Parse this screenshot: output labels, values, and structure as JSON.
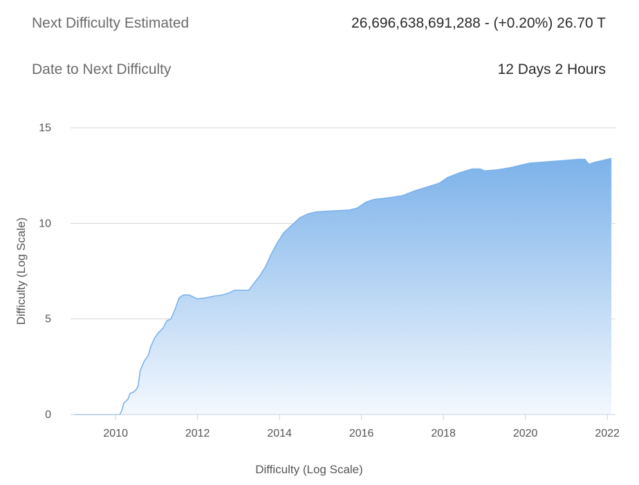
{
  "stats": {
    "next_difficulty_label": "Next Difficulty Estimated",
    "next_difficulty_value": "26,696,638,691,288 - (+0.20%) 26.70 T",
    "date_to_next_label": "Date to Next Difficulty",
    "date_to_next_value": "12 Days 2 Hours"
  },
  "colors": {
    "area_top": "#7cb2ea",
    "area_bottom": "#f3f8fe",
    "line": "#7cb2ea",
    "grid": "#d5d5d5",
    "axis": "#c6d3e6"
  },
  "chart_data": {
    "type": "area",
    "xlabel": "Difficulty (Log Scale)",
    "ylabel": "Difficulty (Log Scale)",
    "xlim": [
      2008.9,
      2022.2
    ],
    "ylim": [
      0,
      15
    ],
    "x_ticks": [
      2010,
      2012,
      2014,
      2016,
      2018,
      2020,
      2022
    ],
    "y_ticks": [
      0,
      5,
      10,
      15
    ],
    "grid": true,
    "series": [
      {
        "points": [
          [
            2009.0,
            0.0
          ],
          [
            2010.1,
            0.0
          ],
          [
            2010.15,
            0.2
          ],
          [
            2010.2,
            0.6
          ],
          [
            2010.3,
            0.8
          ],
          [
            2010.35,
            1.1
          ],
          [
            2010.45,
            1.2
          ],
          [
            2010.5,
            1.3
          ],
          [
            2010.55,
            1.5
          ],
          [
            2010.6,
            2.3
          ],
          [
            2010.7,
            2.8
          ],
          [
            2010.8,
            3.1
          ],
          [
            2010.85,
            3.5
          ],
          [
            2010.95,
            4.0
          ],
          [
            2011.05,
            4.3
          ],
          [
            2011.15,
            4.5
          ],
          [
            2011.25,
            4.9
          ],
          [
            2011.35,
            5.0
          ],
          [
            2011.45,
            5.5
          ],
          [
            2011.55,
            6.1
          ],
          [
            2011.65,
            6.25
          ],
          [
            2011.8,
            6.25
          ],
          [
            2011.9,
            6.15
          ],
          [
            2012.0,
            6.05
          ],
          [
            2012.2,
            6.1
          ],
          [
            2012.4,
            6.2
          ],
          [
            2012.6,
            6.25
          ],
          [
            2012.75,
            6.35
          ],
          [
            2012.9,
            6.5
          ],
          [
            2013.1,
            6.5
          ],
          [
            2013.25,
            6.5
          ],
          [
            2013.35,
            6.8
          ],
          [
            2013.5,
            7.2
          ],
          [
            2013.65,
            7.7
          ],
          [
            2013.8,
            8.4
          ],
          [
            2013.95,
            9.0
          ],
          [
            2014.1,
            9.5
          ],
          [
            2014.3,
            9.9
          ],
          [
            2014.5,
            10.3
          ],
          [
            2014.7,
            10.5
          ],
          [
            2014.9,
            10.6
          ],
          [
            2015.3,
            10.65
          ],
          [
            2015.7,
            10.7
          ],
          [
            2015.9,
            10.8
          ],
          [
            2016.1,
            11.1
          ],
          [
            2016.3,
            11.25
          ],
          [
            2016.7,
            11.35
          ],
          [
            2017.0,
            11.45
          ],
          [
            2017.3,
            11.7
          ],
          [
            2017.6,
            11.9
          ],
          [
            2017.9,
            12.1
          ],
          [
            2018.1,
            12.4
          ],
          [
            2018.4,
            12.65
          ],
          [
            2018.7,
            12.85
          ],
          [
            2018.9,
            12.85
          ],
          [
            2019.0,
            12.75
          ],
          [
            2019.3,
            12.8
          ],
          [
            2019.6,
            12.9
          ],
          [
            2019.9,
            13.05
          ],
          [
            2020.1,
            13.15
          ],
          [
            2020.4,
            13.2
          ],
          [
            2020.7,
            13.25
          ],
          [
            2021.0,
            13.3
          ],
          [
            2021.3,
            13.35
          ],
          [
            2021.45,
            13.35
          ],
          [
            2021.55,
            13.1
          ],
          [
            2021.7,
            13.2
          ],
          [
            2022.0,
            13.35
          ],
          [
            2022.1,
            13.4
          ]
        ]
      }
    ]
  }
}
